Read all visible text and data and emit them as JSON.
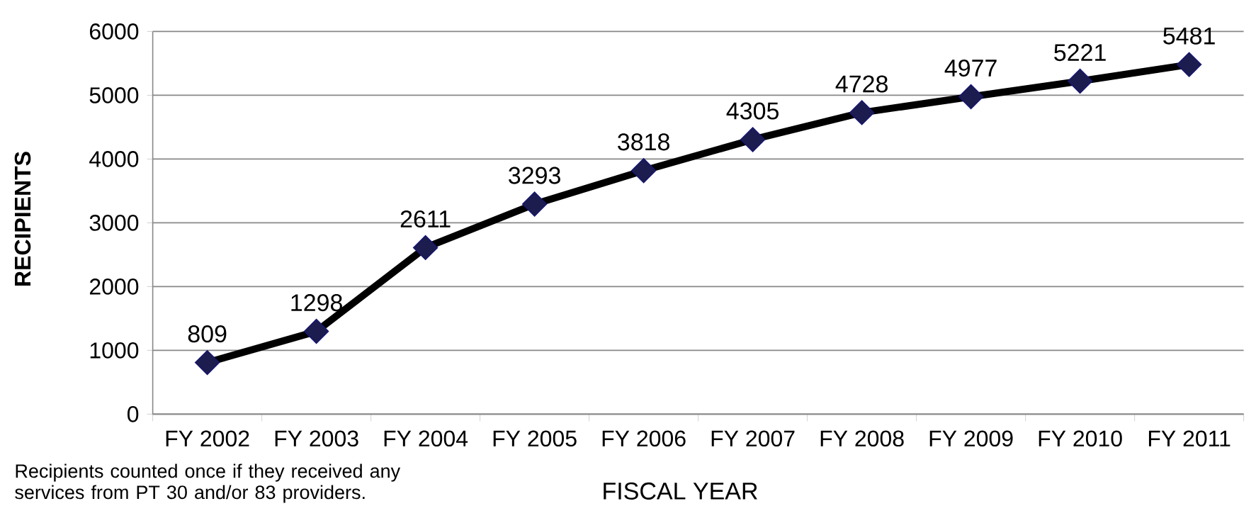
{
  "chart_data": {
    "type": "line",
    "xlabel": "FISCAL YEAR",
    "ylabel": "RECIPIENTS",
    "categories": [
      "FY 2002",
      "FY 2003",
      "FY 2004",
      "FY 2005",
      "FY 2006",
      "FY 2007",
      "FY 2008",
      "FY 2009",
      "FY 2010",
      "FY 2011"
    ],
    "values": [
      809,
      1298,
      2611,
      3293,
      3818,
      4305,
      4728,
      4977,
      5221,
      5481
    ],
    "color": "#000000",
    "colors": [
      "#1c1c4f",
      "#1c1c4f",
      "#1c1c4f",
      "#1c1c4f",
      "#1c1c4f",
      "#1c1c4f",
      "#1c1c4f",
      "#1c1c4f",
      "#1c1c4f",
      "#1c1c4f"
    ],
    "ylim": [
      0,
      6000
    ],
    "yticks": [
      0,
      1000,
      2000,
      3000,
      4000,
      5000,
      6000
    ],
    "grid": "y",
    "marker": "diamond",
    "line_style": "solid",
    "data_labels": true,
    "annotations": [
      "Recipients counted once if they received any services from PT 30 and/or 83 providers."
    ]
  }
}
